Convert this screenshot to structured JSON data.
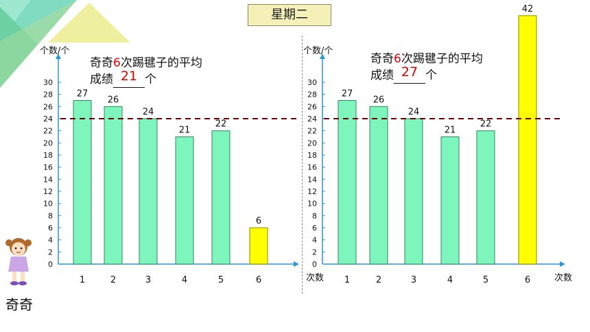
{
  "title": "星期二",
  "character_name": "奇奇",
  "colors": {
    "bar_fill": "#7ff5be",
    "bar_stroke": "#2e8b57",
    "highlight_fill": "#ffff00",
    "highlight_stroke": "#8a8a00",
    "axis": "#2a95d8",
    "answer": "#e00000",
    "title_bg": "#f5f0b8"
  },
  "left_caption": {
    "part1": "奇奇",
    "count": "6",
    "part2": "次踢毽子的平均",
    "line2_prefix": "成绩",
    "answer": "21",
    "line2_suffix": "个"
  },
  "right_caption": {
    "part1": "奇奇",
    "count": "6",
    "part2": "次踢毽子的平均",
    "line2_prefix": "成绩",
    "answer": "27",
    "line2_suffix": "个"
  },
  "chart_data": [
    {
      "type": "bar",
      "ylabel": "个数/个",
      "xlabel": "",
      "categories": [
        "1",
        "2",
        "3",
        "4",
        "5",
        "6"
      ],
      "values": [
        27,
        26,
        24,
        21,
        22,
        6
      ],
      "value_labels": [
        "27",
        "26",
        "24",
        "21",
        "22",
        "6"
      ],
      "highlight_index": 5,
      "yticks": [
        "0",
        "2",
        "4",
        "6",
        "8",
        "10",
        "12",
        "14",
        "16",
        "18",
        "20",
        "22",
        "24",
        "26",
        "28",
        "30"
      ],
      "ylim": [
        0,
        30
      ],
      "reference_line": 24,
      "grid": false
    },
    {
      "type": "bar",
      "ylabel": "个数/个",
      "xlabel": "次数",
      "categories": [
        "1",
        "2",
        "3",
        "4",
        "5",
        "6"
      ],
      "values": [
        27,
        26,
        24,
        21,
        22,
        42
      ],
      "value_labels": [
        "27",
        "26",
        "24",
        "21",
        "22",
        "42"
      ],
      "highlight_index": 5,
      "yticks": [
        "0",
        "2",
        "4",
        "6",
        "8",
        "10",
        "12",
        "14",
        "16",
        "18",
        "20",
        "22",
        "24",
        "26",
        "28",
        "30"
      ],
      "ylim": [
        0,
        30
      ],
      "reference_line": 24,
      "grid": false
    }
  ],
  "left_xlabel_extra": "次数"
}
